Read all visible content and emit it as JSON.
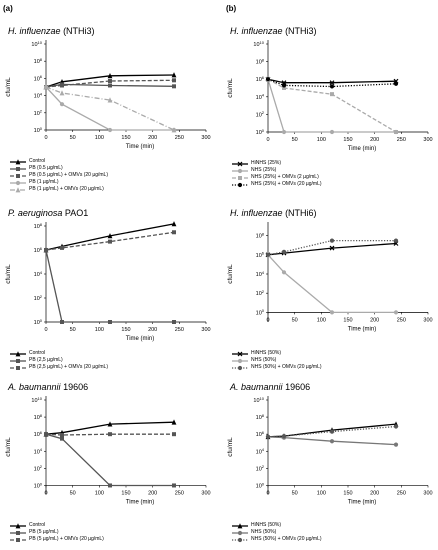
{
  "panel_labels": [
    "(a)",
    "(b)"
  ],
  "chart_data": [
    {
      "type": "line",
      "title_species": "H. influenzae",
      "title_strain": "(NTHi3)",
      "xlabel": "Time (min)",
      "ylabel": "cfu/mL",
      "x_ticks": [
        0,
        50,
        100,
        150,
        200,
        250,
        300
      ],
      "y_ticks": [
        "10^0",
        "10^2",
        "10^4",
        "10^6",
        "10^8",
        "10^10"
      ],
      "xlim": [
        0,
        300
      ],
      "ylim_log10": [
        0,
        10
      ],
      "y_zero_label": "10^0",
      "series": [
        {
          "name": "Control",
          "color": "#000000",
          "dash": "solid",
          "marker": "triangle",
          "x": [
            0,
            30,
            120,
            240
          ],
          "y": [
            100000,
            400000,
            2000000,
            2500000
          ]
        },
        {
          "name": "PB (0.5 µg/mL)",
          "color": "#555555",
          "dash": "solid",
          "marker": "square",
          "x": [
            0,
            30,
            120,
            240
          ],
          "y": [
            100000,
            200000,
            150000,
            120000
          ]
        },
        {
          "name": "PB (0.5 µg/mL) + OMVs (20 µg/mL)",
          "color": "#555555",
          "dash": "dash",
          "marker": "square",
          "x": [
            0,
            30,
            120,
            240
          ],
          "y": [
            100000,
            150000,
            500000,
            600000
          ]
        },
        {
          "name": "PB (1 µg/mL)",
          "color": "#aaaaaa",
          "dash": "solid",
          "marker": "circle",
          "x": [
            0,
            30,
            120,
            240
          ],
          "y": [
            100000,
            1000,
            1,
            1
          ]
        },
        {
          "name": "PB (1 µg/mL) + OMVs (20 µg/mL)",
          "color": "#aaaaaa",
          "dash": "dashdot",
          "marker": "triangle",
          "x": [
            0,
            30,
            120,
            240
          ],
          "y": [
            100000,
            20000,
            3000,
            1
          ]
        }
      ]
    },
    {
      "type": "line",
      "title_species": "P. aeruginosa",
      "title_strain": "PAO1",
      "xlabel": "Time (min)",
      "ylabel": "cfu/mL",
      "x_ticks": [
        0,
        50,
        100,
        150,
        200,
        250,
        300
      ],
      "y_ticks": [
        "10^0",
        "10^2",
        "10^4",
        "10^6",
        "10^8"
      ],
      "xlim": [
        0,
        300
      ],
      "ylim_log10": [
        0,
        8
      ],
      "y_zero_label": "10^0",
      "series": [
        {
          "name": "Control",
          "color": "#000000",
          "dash": "solid",
          "marker": "triangle",
          "x": [
            0,
            30,
            120,
            240
          ],
          "y": [
            1000000,
            2000000,
            15000000,
            150000000
          ]
        },
        {
          "name": "PB (2,5 µg/mL)",
          "color": "#555555",
          "dash": "solid",
          "marker": "square",
          "x": [
            0,
            30,
            120,
            240
          ],
          "y": [
            1000000,
            1,
            1,
            1
          ]
        },
        {
          "name": "PB (2,5 µg/mL) + OMVs (20 µg/mL)",
          "color": "#555555",
          "dash": "dash",
          "marker": "square",
          "x": [
            0,
            30,
            120,
            240
          ],
          "y": [
            1000000,
            1500000,
            5000000,
            30000000
          ]
        }
      ]
    },
    {
      "type": "line",
      "title_species": "A. baumannii",
      "title_strain": "19606",
      "xlabel": "Time (min)",
      "ylabel": "cfu/mL",
      "x_ticks": [
        0,
        50,
        100,
        150,
        200,
        250,
        300
      ],
      "y_ticks": [
        "10^0",
        "10^2",
        "10^4",
        "10^6",
        "10^8",
        "10^10"
      ],
      "xlim": [
        0,
        300
      ],
      "ylim_log10": [
        -1,
        10
      ],
      "y_zero_label": "10^0",
      "series": [
        {
          "name": "Control",
          "color": "#000000",
          "dash": "solid",
          "marker": "triangle",
          "x": [
            0,
            30,
            120,
            240
          ],
          "y": [
            1000000,
            1500000,
            15000000,
            25000000
          ]
        },
        {
          "name": "PB (5 µg/mL)",
          "color": "#555555",
          "dash": "solid",
          "marker": "square",
          "x": [
            0,
            30,
            120,
            240
          ],
          "y": [
            1000000,
            300000,
            1,
            1
          ]
        },
        {
          "name": "PB (5 µg/mL) + OMVs (20 µg/mL)",
          "color": "#555555",
          "dash": "dash",
          "marker": "square",
          "x": [
            0,
            30,
            120,
            240
          ],
          "y": [
            1000000,
            800000,
            1000000,
            1000000
          ]
        }
      ]
    },
    {
      "type": "line",
      "title_species": "H. influenzae",
      "title_strain": "(NTHi3)",
      "xlabel": "Time (min)",
      "ylabel": "cfu/mL",
      "x_ticks": [
        0,
        50,
        100,
        150,
        200,
        250,
        300
      ],
      "y_ticks": [
        "10^0",
        "10^2",
        "10^4",
        "10^6",
        "10^8",
        "10^10"
      ],
      "xlim": [
        0,
        300
      ],
      "ylim_log10": [
        0,
        10
      ],
      "y_zero_label": "10^0",
      "series": [
        {
          "name": "HiNHS (25%)",
          "color": "#000000",
          "dash": "solid",
          "marker": "x",
          "x": [
            0,
            30,
            120,
            240
          ],
          "y": [
            1000000,
            400000,
            400000,
            600000
          ]
        },
        {
          "name": "NHS (25%)",
          "color": "#aaaaaa",
          "dash": "solid",
          "marker": "circle",
          "x": [
            0,
            30,
            120,
            240
          ],
          "y": [
            1000000,
            1,
            1,
            1
          ]
        },
        {
          "name": "NHS (25%) + OMVs (2 µg/mL)",
          "color": "#aaaaaa",
          "dash": "dash",
          "marker": "square",
          "x": [
            0,
            30,
            120,
            240
          ],
          "y": [
            1000000,
            100000,
            20000,
            1
          ]
        },
        {
          "name": "NHS (25%) + OMVs (20 µg/mL)",
          "color": "#000000",
          "dash": "dot",
          "marker": "circle",
          "x": [
            0,
            30,
            120,
            240
          ],
          "y": [
            1000000,
            200000,
            150000,
            300000
          ]
        }
      ]
    },
    {
      "type": "line",
      "title_species": "H. influenzae",
      "title_strain": "(NTHi6)",
      "xlabel": "Time (min)",
      "ylabel": "cfu/mL",
      "x_ticks": [
        0,
        50,
        100,
        150,
        200,
        250,
        300
      ],
      "y_ticks": [
        "10^0",
        "10^2",
        "10^4",
        "10^6",
        "10^8"
      ],
      "xlim": [
        0,
        300
      ],
      "ylim_log10": [
        -1,
        9
      ],
      "y_zero_label": "10^0",
      "series": [
        {
          "name": "HiNHS (50%)",
          "color": "#000000",
          "dash": "solid",
          "marker": "x",
          "x": [
            0,
            30,
            120,
            240
          ],
          "y": [
            1000000,
            1500000,
            5000000,
            15000000
          ]
        },
        {
          "name": "NHS (50%)",
          "color": "#aaaaaa",
          "dash": "solid",
          "marker": "circle",
          "x": [
            0,
            30,
            120,
            240
          ],
          "y": [
            1000000,
            15000,
            1,
            1
          ]
        },
        {
          "name": "NHS (50%) + OMVs (20 µg/mL)",
          "color": "#555555",
          "dash": "dot",
          "marker": "circle",
          "x": [
            0,
            30,
            120,
            240
          ],
          "y": [
            1000000,
            2000000,
            30000000,
            30000000
          ]
        }
      ]
    },
    {
      "type": "line",
      "title_species": "A. baumannii",
      "title_strain": "19606",
      "xlabel": "Time (min)",
      "ylabel": "cfu/mL",
      "x_ticks": [
        0,
        50,
        100,
        150,
        200,
        250,
        300
      ],
      "y_ticks": [
        "10^0",
        "10^2",
        "10^4",
        "10^6",
        "10^8",
        "10^10"
      ],
      "xlim": [
        0,
        300
      ],
      "ylim_log10": [
        -1,
        10
      ],
      "y_zero_label": "10^0",
      "series": [
        {
          "name": "HiNHS (50%)",
          "color": "#000000",
          "dash": "solid",
          "marker": "triangle",
          "x": [
            0,
            30,
            120,
            240
          ],
          "y": [
            500000,
            600000,
            3000000,
            15000000
          ]
        },
        {
          "name": "NHS (50%)",
          "color": "#777777",
          "dash": "solid",
          "marker": "circle",
          "x": [
            0,
            30,
            120,
            240
          ],
          "y": [
            500000,
            400000,
            150000,
            60000
          ]
        },
        {
          "name": "NHS (50%) + OMVs (20 µg/mL)",
          "color": "#555555",
          "dash": "dot",
          "marker": "circle",
          "x": [
            0,
            30,
            120,
            240
          ],
          "y": [
            500000,
            600000,
            2000000,
            8000000
          ]
        }
      ]
    }
  ]
}
